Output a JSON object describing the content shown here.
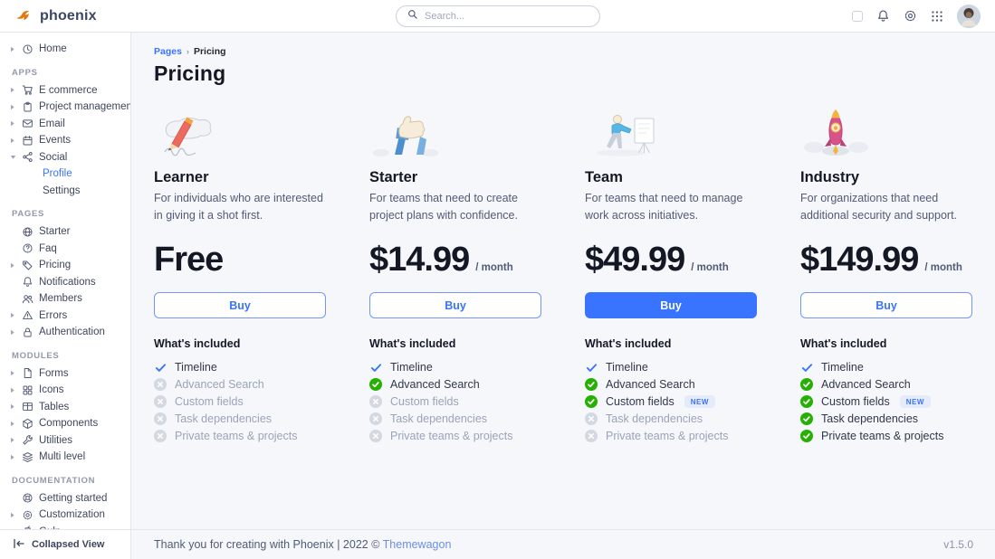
{
  "navbar": {
    "brand": "phoenix",
    "search": {
      "placeholder": "Search..."
    },
    "icons": [
      "theme-toggle",
      "bell-icon",
      "gear-icon",
      "apps-grid-icon",
      "user-avatar"
    ]
  },
  "sidebar": {
    "sections": [
      {
        "label": "",
        "items": [
          {
            "label": "Home",
            "icon": "clock",
            "caret": "right"
          }
        ]
      },
      {
        "label": "APPS",
        "items": [
          {
            "label": "E commerce",
            "icon": "cart",
            "caret": "right"
          },
          {
            "label": "Project management",
            "icon": "clipboard",
            "caret": "right"
          },
          {
            "label": "Email",
            "icon": "envelope",
            "caret": "right"
          },
          {
            "label": "Events",
            "icon": "calendar",
            "caret": "right"
          },
          {
            "label": "Social",
            "icon": "share",
            "caret": "down",
            "children": [
              {
                "label": "Profile",
                "active": true
              },
              {
                "label": "Settings",
                "active": false
              }
            ]
          }
        ]
      },
      {
        "label": "PAGES",
        "items": [
          {
            "label": "Starter",
            "icon": "globe",
            "caret": ""
          },
          {
            "label": "Faq",
            "icon": "question",
            "caret": ""
          },
          {
            "label": "Pricing",
            "icon": "tag",
            "caret": "right"
          },
          {
            "label": "Notifications",
            "icon": "bell",
            "caret": ""
          },
          {
            "label": "Members",
            "icon": "users",
            "caret": ""
          },
          {
            "label": "Errors",
            "icon": "warning",
            "caret": "right"
          },
          {
            "label": "Authentication",
            "icon": "lock",
            "caret": "right"
          }
        ]
      },
      {
        "label": "MODULES",
        "items": [
          {
            "label": "Forms",
            "icon": "file",
            "caret": "right"
          },
          {
            "label": "Icons",
            "icon": "grid4",
            "caret": "right"
          },
          {
            "label": "Tables",
            "icon": "table",
            "caret": "right"
          },
          {
            "label": "Components",
            "icon": "package",
            "caret": "right"
          },
          {
            "label": "Utilities",
            "icon": "wrench",
            "caret": "right"
          },
          {
            "label": "Multi level",
            "icon": "layers",
            "caret": "right"
          }
        ]
      },
      {
        "label": "DOCUMENTATION",
        "items": [
          {
            "label": "Getting started",
            "icon": "lifering",
            "caret": ""
          },
          {
            "label": "Customization",
            "icon": "gear",
            "caret": "right"
          },
          {
            "label": "Gulp",
            "icon": "cup",
            "caret": ""
          }
        ]
      }
    ],
    "collapsed_view": "Collapsed View"
  },
  "breadcrumb": {
    "link": "Pages",
    "current": "Pricing"
  },
  "page": {
    "title": "Pricing"
  },
  "included_title": "What's included",
  "plans": [
    {
      "name": "Learner",
      "illustration": "pencil",
      "description": "For individuals who are interested in giving it a shot first.",
      "price": "Free",
      "period": "",
      "buy_label": "Buy",
      "buy_style": "outline",
      "features": [
        {
          "label": "Timeline",
          "status": "included-basic"
        },
        {
          "label": "Advanced Search",
          "status": "excluded"
        },
        {
          "label": "Custom fields",
          "status": "excluded"
        },
        {
          "label": "Task dependencies",
          "status": "excluded"
        },
        {
          "label": "Private teams & projects",
          "status": "excluded"
        }
      ]
    },
    {
      "name": "Starter",
      "illustration": "thumbs",
      "description": "For teams that need to create project plans with confidence.",
      "price": "$14.99",
      "period": "/ month",
      "buy_label": "Buy",
      "buy_style": "outline",
      "features": [
        {
          "label": "Timeline",
          "status": "included-basic"
        },
        {
          "label": "Advanced Search",
          "status": "included"
        },
        {
          "label": "Custom fields",
          "status": "excluded"
        },
        {
          "label": "Task dependencies",
          "status": "excluded"
        },
        {
          "label": "Private teams & projects",
          "status": "excluded"
        }
      ]
    },
    {
      "name": "Team",
      "illustration": "presenter",
      "description": "For teams that need to manage work across initiatives.",
      "price": "$49.99",
      "period": "/ month",
      "buy_label": "Buy",
      "buy_style": "solid",
      "features": [
        {
          "label": "Timeline",
          "status": "included-basic"
        },
        {
          "label": "Advanced Search",
          "status": "included"
        },
        {
          "label": "Custom fields",
          "status": "included",
          "badge": "NEW"
        },
        {
          "label": "Task dependencies",
          "status": "excluded"
        },
        {
          "label": "Private teams & projects",
          "status": "excluded"
        }
      ]
    },
    {
      "name": "Industry",
      "illustration": "rocket",
      "description": "For organizations that need additional security and support.",
      "price": "$149.99",
      "period": "/ month",
      "buy_label": "Buy",
      "buy_style": "outline",
      "features": [
        {
          "label": "Timeline",
          "status": "included-basic"
        },
        {
          "label": "Advanced Search",
          "status": "included"
        },
        {
          "label": "Custom fields",
          "status": "included",
          "badge": "NEW"
        },
        {
          "label": "Task dependencies",
          "status": "included"
        },
        {
          "label": "Private teams & projects",
          "status": "included"
        }
      ]
    }
  ],
  "footer": {
    "thanks": "Thank you for creating with Phoenix | 2022 ©",
    "link": "Themewagon",
    "version": "v1.5.0"
  },
  "colors": {
    "primary": "#3874ff",
    "success": "#25b003",
    "excluded_circle": "#d3d8e1",
    "badge_bg": "#e5ebfa"
  }
}
